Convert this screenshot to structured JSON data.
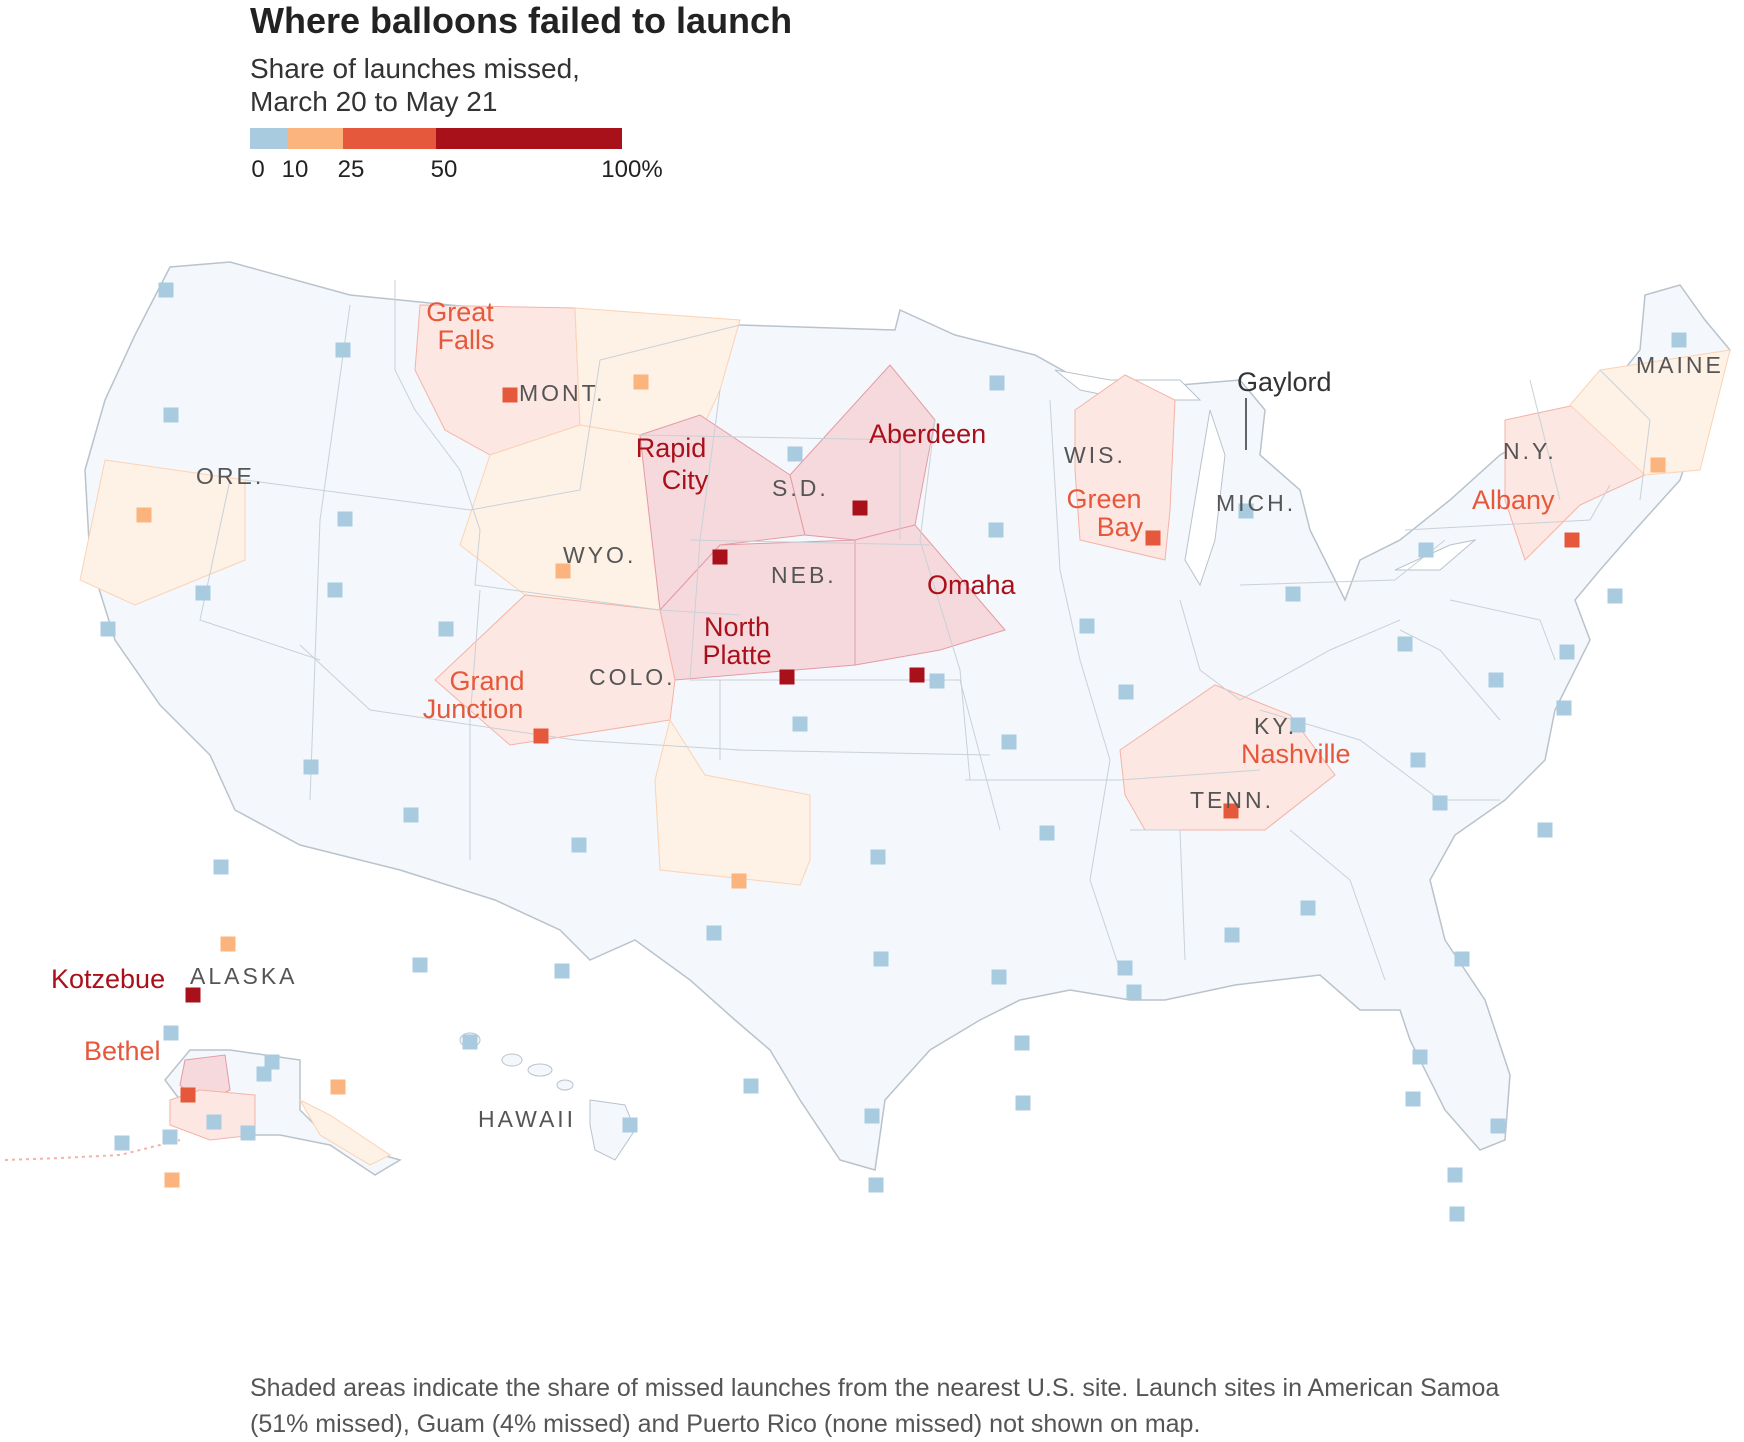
{
  "title": "Where balloons failed to launch",
  "subtitle_line1": "Share of launches missed,",
  "subtitle_line2": "March 20 to May 21",
  "legend": {
    "bins": [
      {
        "from": 0,
        "to": 10,
        "color": "#a8cbe0"
      },
      {
        "from": 10,
        "to": 25,
        "color": "#fbb47e"
      },
      {
        "from": 25,
        "to": 50,
        "color": "#e5583b"
      },
      {
        "from": 50,
        "to": 100,
        "color": "#a8101a"
      }
    ],
    "ticks": [
      "0",
      "10",
      "25",
      "50",
      "100%"
    ]
  },
  "state_labels": [
    "ORE.",
    "MONT.",
    "WYO.",
    "S.D.",
    "NEB.",
    "COLO.",
    "WIS.",
    "MICH.",
    "N.Y.",
    "MAINE",
    "KY.",
    "TENN.",
    "ALASKA",
    "HAWAII"
  ],
  "site_labels": {
    "great_falls": [
      "Great",
      "Falls"
    ],
    "rapid_city": [
      "Rapid",
      "City"
    ],
    "aberdeen": "Aberdeen",
    "omaha": "Omaha",
    "north_platte": [
      "North",
      "Platte"
    ],
    "grand_junction": [
      "Grand",
      "Junction"
    ],
    "green_bay": [
      "Green",
      "Bay"
    ],
    "gaylord": "Gaylord",
    "albany": "Albany",
    "nashville": "Nashville",
    "kotzebue": "Kotzebue",
    "bethel": "Bethel"
  },
  "launch_sites": [
    {
      "name": "Great Falls",
      "category": "25-50"
    },
    {
      "name": "Rapid City",
      "category": "50-100"
    },
    {
      "name": "Aberdeen",
      "category": "50-100"
    },
    {
      "name": "Omaha",
      "category": "50-100"
    },
    {
      "name": "North Platte",
      "category": "50-100"
    },
    {
      "name": "Grand Junction",
      "category": "25-50"
    },
    {
      "name": "Green Bay",
      "category": "25-50"
    },
    {
      "name": "Gaylord",
      "category": "0-10"
    },
    {
      "name": "Albany",
      "category": "25-50"
    },
    {
      "name": "Nashville",
      "category": "25-50"
    },
    {
      "name": "Kotzebue",
      "category": "50-100"
    },
    {
      "name": "Bethel",
      "category": "25-50"
    }
  ],
  "colors": {
    "land": "#f4f7fb",
    "border": "#b9c3cc",
    "label_dark": "#a8101a",
    "label_mid": "#e5583b",
    "label_state": "#555555"
  },
  "note": "Shaded areas indicate the share of missed launches from the nearest U.S. site. Launch sites in American Samoa (51% missed), Guam (4% missed) and Puerto Rico (none missed) not shown on map."
}
